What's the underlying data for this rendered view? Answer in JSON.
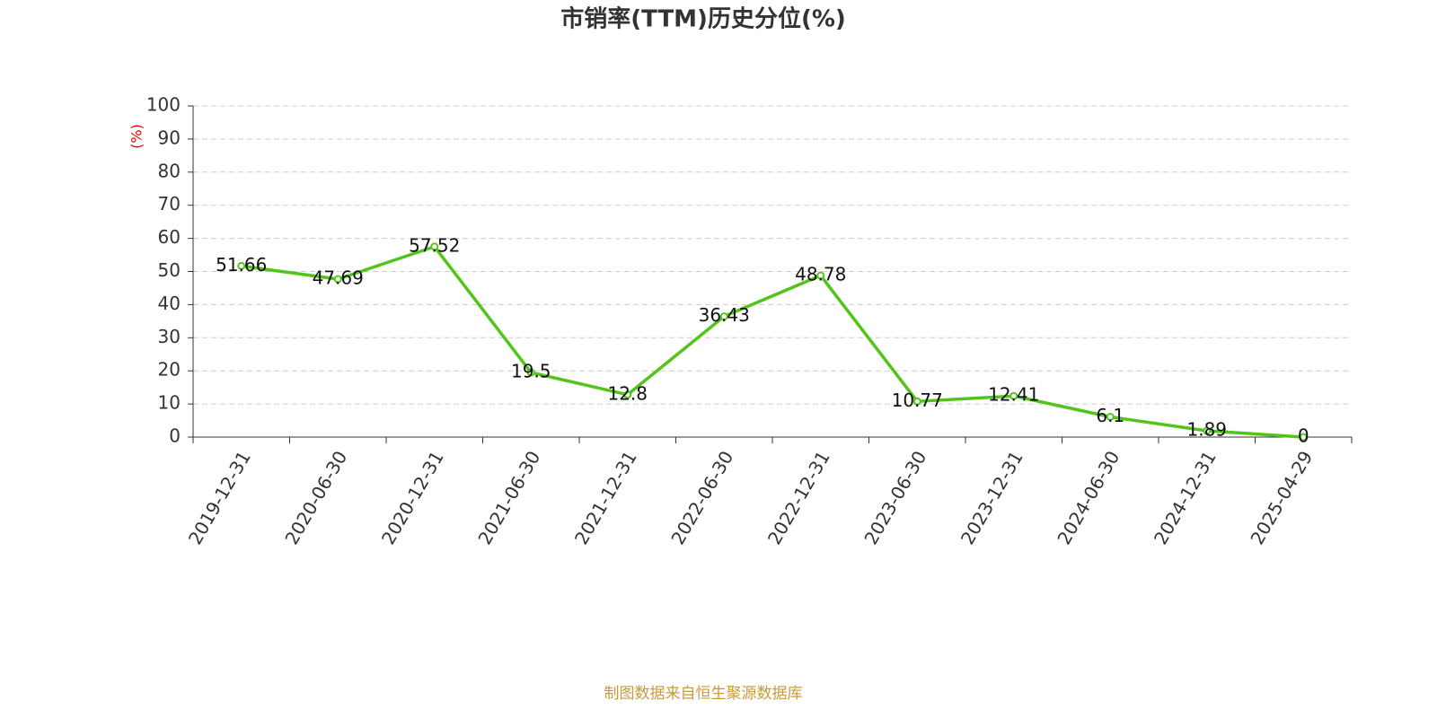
{
  "chart_data": {
    "type": "line",
    "title": "市销率(TTM)历史分位(%)",
    "y_label": "(%)",
    "source": "制图数据来自恒生聚源数据库",
    "categories": [
      "2019-12-31",
      "2020-06-30",
      "2020-12-31",
      "2021-06-30",
      "2021-12-31",
      "2022-06-30",
      "2022-12-31",
      "2023-06-30",
      "2023-12-31",
      "2024-06-30",
      "2024-12-31",
      "2025-04-29"
    ],
    "values": [
      51.66,
      47.69,
      57.52,
      19.5,
      12.8,
      36.43,
      48.78,
      10.77,
      12.41,
      6.1,
      1.89,
      0
    ],
    "color": "#52c41a",
    "ylim": [
      0,
      100
    ],
    "yticks": [
      0,
      10,
      20,
      30,
      40,
      50,
      60,
      70,
      80,
      90,
      100
    ],
    "grid": true
  }
}
